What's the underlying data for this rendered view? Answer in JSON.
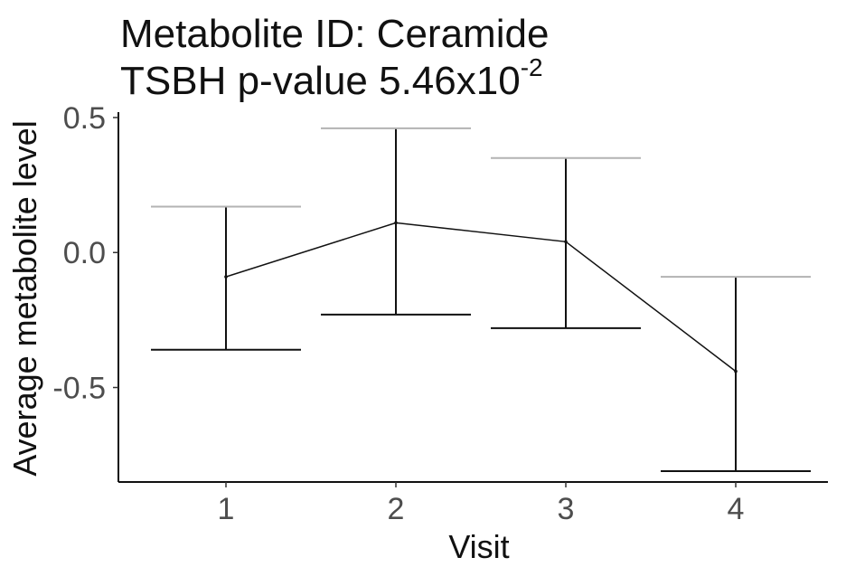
{
  "chart_data": {
    "type": "line",
    "title_line1": "Metabolite ID: Ceramide",
    "title_line2_prefix": "TSBH p-value 5.46x10",
    "title_line2_exponent": "-2",
    "xlabel": "Visit",
    "ylabel": "Average metabolite level",
    "categories": [
      "1",
      "2",
      "3",
      "4"
    ],
    "series": [
      {
        "values": [
          -0.09,
          0.11,
          0.04,
          -0.44
        ],
        "error_lower": [
          -0.36,
          -0.23,
          -0.28,
          -0.81
        ],
        "error_upper": [
          0.17,
          0.46,
          0.35,
          -0.09
        ]
      }
    ],
    "y_ticks": [
      0.5,
      0.0,
      -0.5
    ],
    "y_tick_labels": [
      "0.5",
      "0.0",
      "-0.5"
    ],
    "ylim": [
      -0.85,
      0.52
    ],
    "grid": false,
    "colors": {
      "upper_caps": "#b3b3b3",
      "lower_caps": "#111111",
      "mean_line": "#111111",
      "error_bars": "#111111"
    }
  }
}
